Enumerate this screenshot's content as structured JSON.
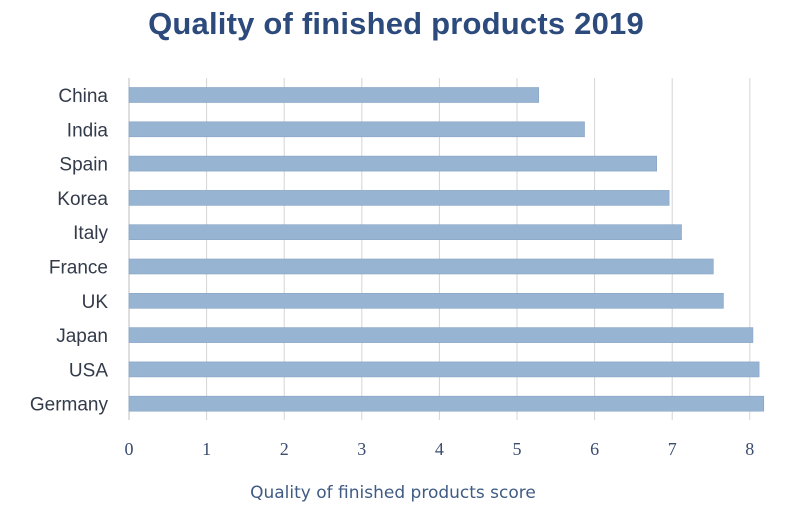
{
  "chart_data": {
    "type": "bar",
    "orientation": "horizontal",
    "title": "Quality of finished products 2019",
    "xlabel": "Quality of finished products score",
    "ylabel": "",
    "categories": [
      "China",
      "India",
      "Spain",
      "Korea",
      "Italy",
      "France",
      "UK",
      "Japan",
      "USA",
      "Germany"
    ],
    "values": [
      5.28,
      5.87,
      6.8,
      6.96,
      7.12,
      7.53,
      7.66,
      8.04,
      8.12,
      8.18
    ],
    "xlim": [
      0,
      8.3
    ],
    "xticks": [
      "0",
      "1",
      "2",
      "3",
      "4",
      "5",
      "6",
      "7",
      "8"
    ],
    "grid": "vertical",
    "legend": "none",
    "colors": {
      "bar": "#98b4d3",
      "bar_edge": "#86a3c4",
      "grid": "#d4d4d4",
      "title": "#2c4a7c"
    }
  }
}
